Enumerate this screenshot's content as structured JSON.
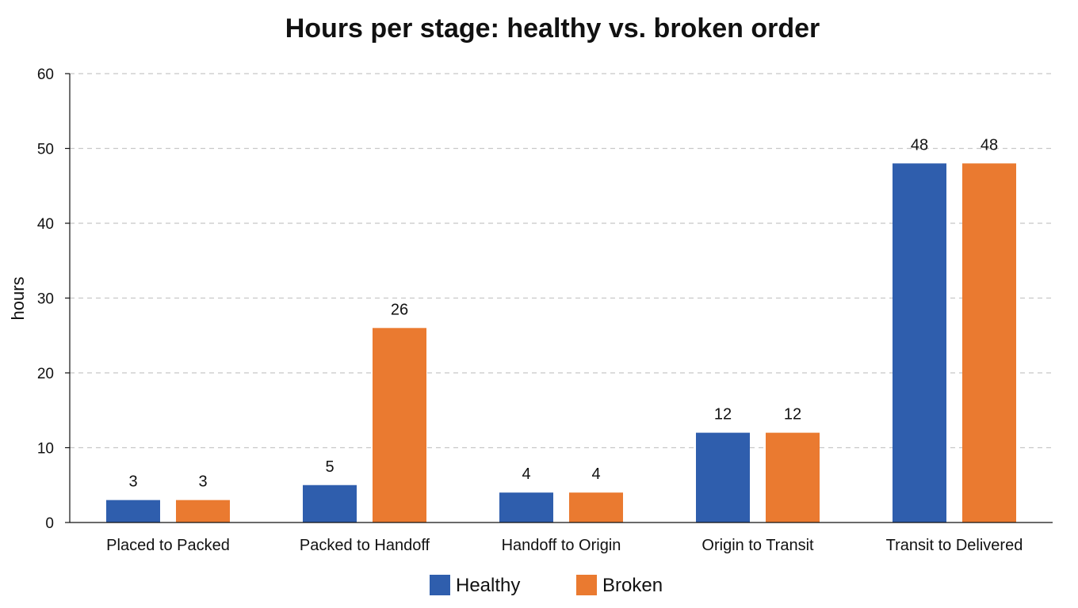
{
  "chart_data": {
    "type": "bar",
    "title": "Hours per stage: healthy vs. broken order",
    "xlabel": "",
    "ylabel": "hours",
    "ylim": [
      0,
      60
    ],
    "yticks": [
      0,
      10,
      20,
      30,
      40,
      50,
      60
    ],
    "grid": true,
    "legend_position": "bottom",
    "categories": [
      "Placed to Packed",
      "Packed to Handoff",
      "Handoff to Origin",
      "Origin to Transit",
      "Transit to Delivered"
    ],
    "series": [
      {
        "name": "Healthy",
        "color": "#2f5ead",
        "values": [
          3,
          5,
          4,
          12,
          48
        ]
      },
      {
        "name": "Broken",
        "color": "#ea7a30",
        "values": [
          3,
          26,
          4,
          12,
          48
        ]
      }
    ]
  }
}
